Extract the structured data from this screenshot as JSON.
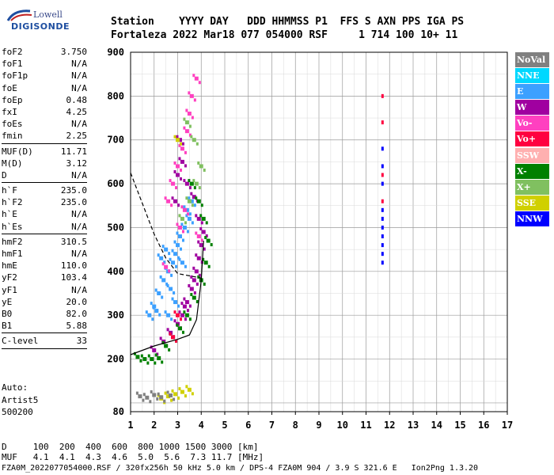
{
  "logo": {
    "line1": "Lowell",
    "line2": "DIGISONDE"
  },
  "header": {
    "row1": "Station    YYYY DAY   DDD HHMMSS P1  FFS S AXN PPS IGA PS",
    "row2": "Fortaleza 2022 Mar18 077 054000 RSF     1 714 100 10+ 11"
  },
  "params": [
    [
      {
        "label": "foF2",
        "value": "3.750"
      },
      {
        "label": "foF1",
        "value": "N/A"
      },
      {
        "label": "foF1p",
        "value": "N/A"
      },
      {
        "label": "foE",
        "value": "N/A"
      },
      {
        "label": "foEp",
        "value": "0.48"
      },
      {
        "label": "fxI",
        "value": "4.25"
      },
      {
        "label": "foEs",
        "value": "N/A"
      },
      {
        "label": "fmin",
        "value": "2.25"
      }
    ],
    [
      {
        "label": "MUF(D)",
        "value": "11.71"
      },
      {
        "label": "M(D)",
        "value": "3.12"
      },
      {
        "label": "D",
        "value": "N/A"
      }
    ],
    [
      {
        "label": "h`F",
        "value": "235.0"
      },
      {
        "label": "h`F2",
        "value": "235.0"
      },
      {
        "label": "h`E",
        "value": "N/A"
      },
      {
        "label": "h`Es",
        "value": "N/A"
      }
    ],
    [
      {
        "label": "hmF2",
        "value": "310.5"
      },
      {
        "label": "hmF1",
        "value": "N/A"
      },
      {
        "label": "hmE",
        "value": "110.0"
      },
      {
        "label": "yF2",
        "value": "103.4"
      },
      {
        "label": "yF1",
        "value": "N/A"
      },
      {
        "label": "yE",
        "value": "20.0"
      },
      {
        "label": "B0",
        "value": "82.0"
      },
      {
        "label": "B1",
        "value": "5.88"
      }
    ],
    [
      {
        "label": "C-level",
        "value": "33"
      }
    ]
  ],
  "auto": {
    "line1": "Auto:",
    "line2": "Artist5",
    "line3": "500200"
  },
  "footer": {
    "d_row": "D     100  200  400  600  800 1000 1500 3000 [km]",
    "muf_row": "MUF   4.1  4.1  4.3  4.6  5.0  5.6  7.3 11.7 [MHz]",
    "info": "FZA0M_2022077054000.RSF / 320fx256h 50 kHz 5.0 km / DPS-4 FZA0M 904 / 3.9 S 321.6 E   Ion2Png 1.3.20"
  },
  "legend": [
    {
      "label": "NoVal",
      "color": "#808080"
    },
    {
      "label": "NNE",
      "color": "#00d8ff"
    },
    {
      "label": "E",
      "color": "#3ca0ff"
    },
    {
      "label": "W",
      "color": "#a000a0"
    },
    {
      "label": "Vo-",
      "color": "#ff40c0"
    },
    {
      "label": "Vo+",
      "color": "#ff0040"
    },
    {
      "label": "SSW",
      "color": "#ffb0b0"
    },
    {
      "label": "X-",
      "color": "#008000"
    },
    {
      "label": "X+",
      "color": "#80c060"
    },
    {
      "label": "SSE",
      "color": "#d0d000"
    },
    {
      "label": "NNW",
      "color": "#0000ff"
    }
  ],
  "chart_data": {
    "type": "scatter",
    "title": "",
    "xlabel": "",
    "ylabel": "",
    "xlim": [
      1,
      17
    ],
    "ylim": [
      80,
      900
    ],
    "x_ticks": [
      "1",
      "2",
      "3",
      "4",
      "5",
      "6",
      "7",
      "8",
      "9",
      "10",
      "11",
      "12",
      "13",
      "14",
      "15",
      "16",
      "17"
    ],
    "y_ticks": [
      "80",
      "200",
      "300",
      "400",
      "500",
      "600",
      "700",
      "800",
      "900"
    ],
    "grid": true,
    "series": [
      {
        "name": "E",
        "color": "#3ca0ff",
        "points": [
          [
            1.8,
            300
          ],
          [
            2.0,
            320
          ],
          [
            2.2,
            350
          ],
          [
            2.4,
            380
          ],
          [
            2.6,
            400
          ],
          [
            2.8,
            420
          ],
          [
            2.9,
            440
          ],
          [
            3.0,
            460
          ],
          [
            2.5,
            450
          ],
          [
            2.3,
            430
          ],
          [
            2.1,
            310
          ],
          [
            2.7,
            360
          ],
          [
            3.1,
            480
          ],
          [
            3.3,
            500
          ],
          [
            3.5,
            520
          ],
          [
            3.2,
            420
          ],
          [
            2.9,
            330
          ],
          [
            2.6,
            300
          ],
          [
            3.4,
            540
          ],
          [
            3.6,
            560
          ]
        ]
      },
      {
        "name": "W",
        "color": "#a000a0",
        "points": [
          [
            2.0,
            220
          ],
          [
            2.4,
            240
          ],
          [
            2.7,
            260
          ],
          [
            3.0,
            280
          ],
          [
            3.2,
            300
          ],
          [
            3.4,
            330
          ],
          [
            3.6,
            360
          ],
          [
            3.8,
            400
          ],
          [
            3.9,
            430
          ],
          [
            4.0,
            460
          ],
          [
            4.1,
            490
          ],
          [
            3.7,
            380
          ],
          [
            3.3,
            320
          ],
          [
            3.0,
            620
          ],
          [
            3.2,
            650
          ],
          [
            3.4,
            600
          ],
          [
            3.7,
            570
          ],
          [
            3.9,
            520
          ],
          [
            2.9,
            560
          ],
          [
            3.1,
            700
          ]
        ]
      },
      {
        "name": "Vo-",
        "color": "#ff40c0",
        "points": [
          [
            2.6,
            560
          ],
          [
            2.8,
            600
          ],
          [
            3.0,
            640
          ],
          [
            3.2,
            680
          ],
          [
            3.4,
            720
          ],
          [
            3.5,
            760
          ],
          [
            3.6,
            800
          ],
          [
            3.8,
            840
          ],
          [
            3.3,
            540
          ],
          [
            3.1,
            500
          ],
          [
            2.5,
            410
          ],
          [
            3.9,
            480
          ]
        ]
      },
      {
        "name": "X-",
        "color": "#008000",
        "points": [
          [
            1.3,
            205
          ],
          [
            1.6,
            200
          ],
          [
            1.9,
            200
          ],
          [
            2.2,
            202
          ],
          [
            2.5,
            230
          ],
          [
            2.8,
            250
          ],
          [
            3.1,
            270
          ],
          [
            3.4,
            300
          ],
          [
            3.7,
            340
          ],
          [
            4.0,
            380
          ],
          [
            4.2,
            420
          ],
          [
            4.3,
            470
          ],
          [
            4.1,
            520
          ],
          [
            3.9,
            560
          ],
          [
            3.6,
            600
          ]
        ]
      },
      {
        "name": "X+",
        "color": "#80c060",
        "points": [
          [
            3.2,
            520
          ],
          [
            3.5,
            560
          ],
          [
            3.8,
            600
          ],
          [
            4.0,
            640
          ],
          [
            3.7,
            700
          ],
          [
            3.4,
            740
          ]
        ]
      },
      {
        "name": "SSE",
        "color": "#d0d000",
        "points": [
          [
            2.3,
            110
          ],
          [
            2.6,
            115
          ],
          [
            2.9,
            120
          ],
          [
            3.2,
            125
          ],
          [
            3.5,
            130
          ],
          [
            3.0,
            700
          ]
        ]
      },
      {
        "name": "NNW",
        "color": "#0000ff",
        "points": [
          [
            11.7,
            420
          ],
          [
            11.7,
            440
          ],
          [
            11.7,
            460
          ],
          [
            11.7,
            480
          ],
          [
            11.7,
            500
          ],
          [
            11.7,
            520
          ],
          [
            11.7,
            540
          ],
          [
            11.7,
            600
          ],
          [
            11.7,
            640
          ],
          [
            11.7,
            680
          ]
        ]
      },
      {
        "name": "Vo+",
        "color": "#ff0040",
        "points": [
          [
            11.7,
            620
          ],
          [
            11.7,
            560
          ],
          [
            11.7,
            740
          ],
          [
            11.7,
            800
          ],
          [
            2.8,
            250
          ],
          [
            3.0,
            300
          ]
        ]
      },
      {
        "name": "NoVal",
        "color": "#808080",
        "points": [
          [
            1.4,
            115
          ],
          [
            1.7,
            112
          ],
          [
            2.0,
            118
          ],
          [
            2.3,
            113
          ],
          [
            2.7,
            117
          ]
        ]
      }
    ],
    "traces": {
      "dashed": [
        [
          1.0,
          625
        ],
        [
          1.5,
          555
        ],
        [
          2.0,
          485
        ],
        [
          2.5,
          430
        ],
        [
          3.0,
          395
        ],
        [
          3.5,
          390
        ],
        [
          4.0,
          385
        ]
      ],
      "solid": [
        [
          1.0,
          210
        ],
        [
          2.0,
          230
        ],
        [
          3.0,
          245
        ],
        [
          3.5,
          255
        ],
        [
          3.8,
          290
        ],
        [
          4.0,
          380
        ],
        [
          4.1,
          470
        ]
      ]
    }
  }
}
